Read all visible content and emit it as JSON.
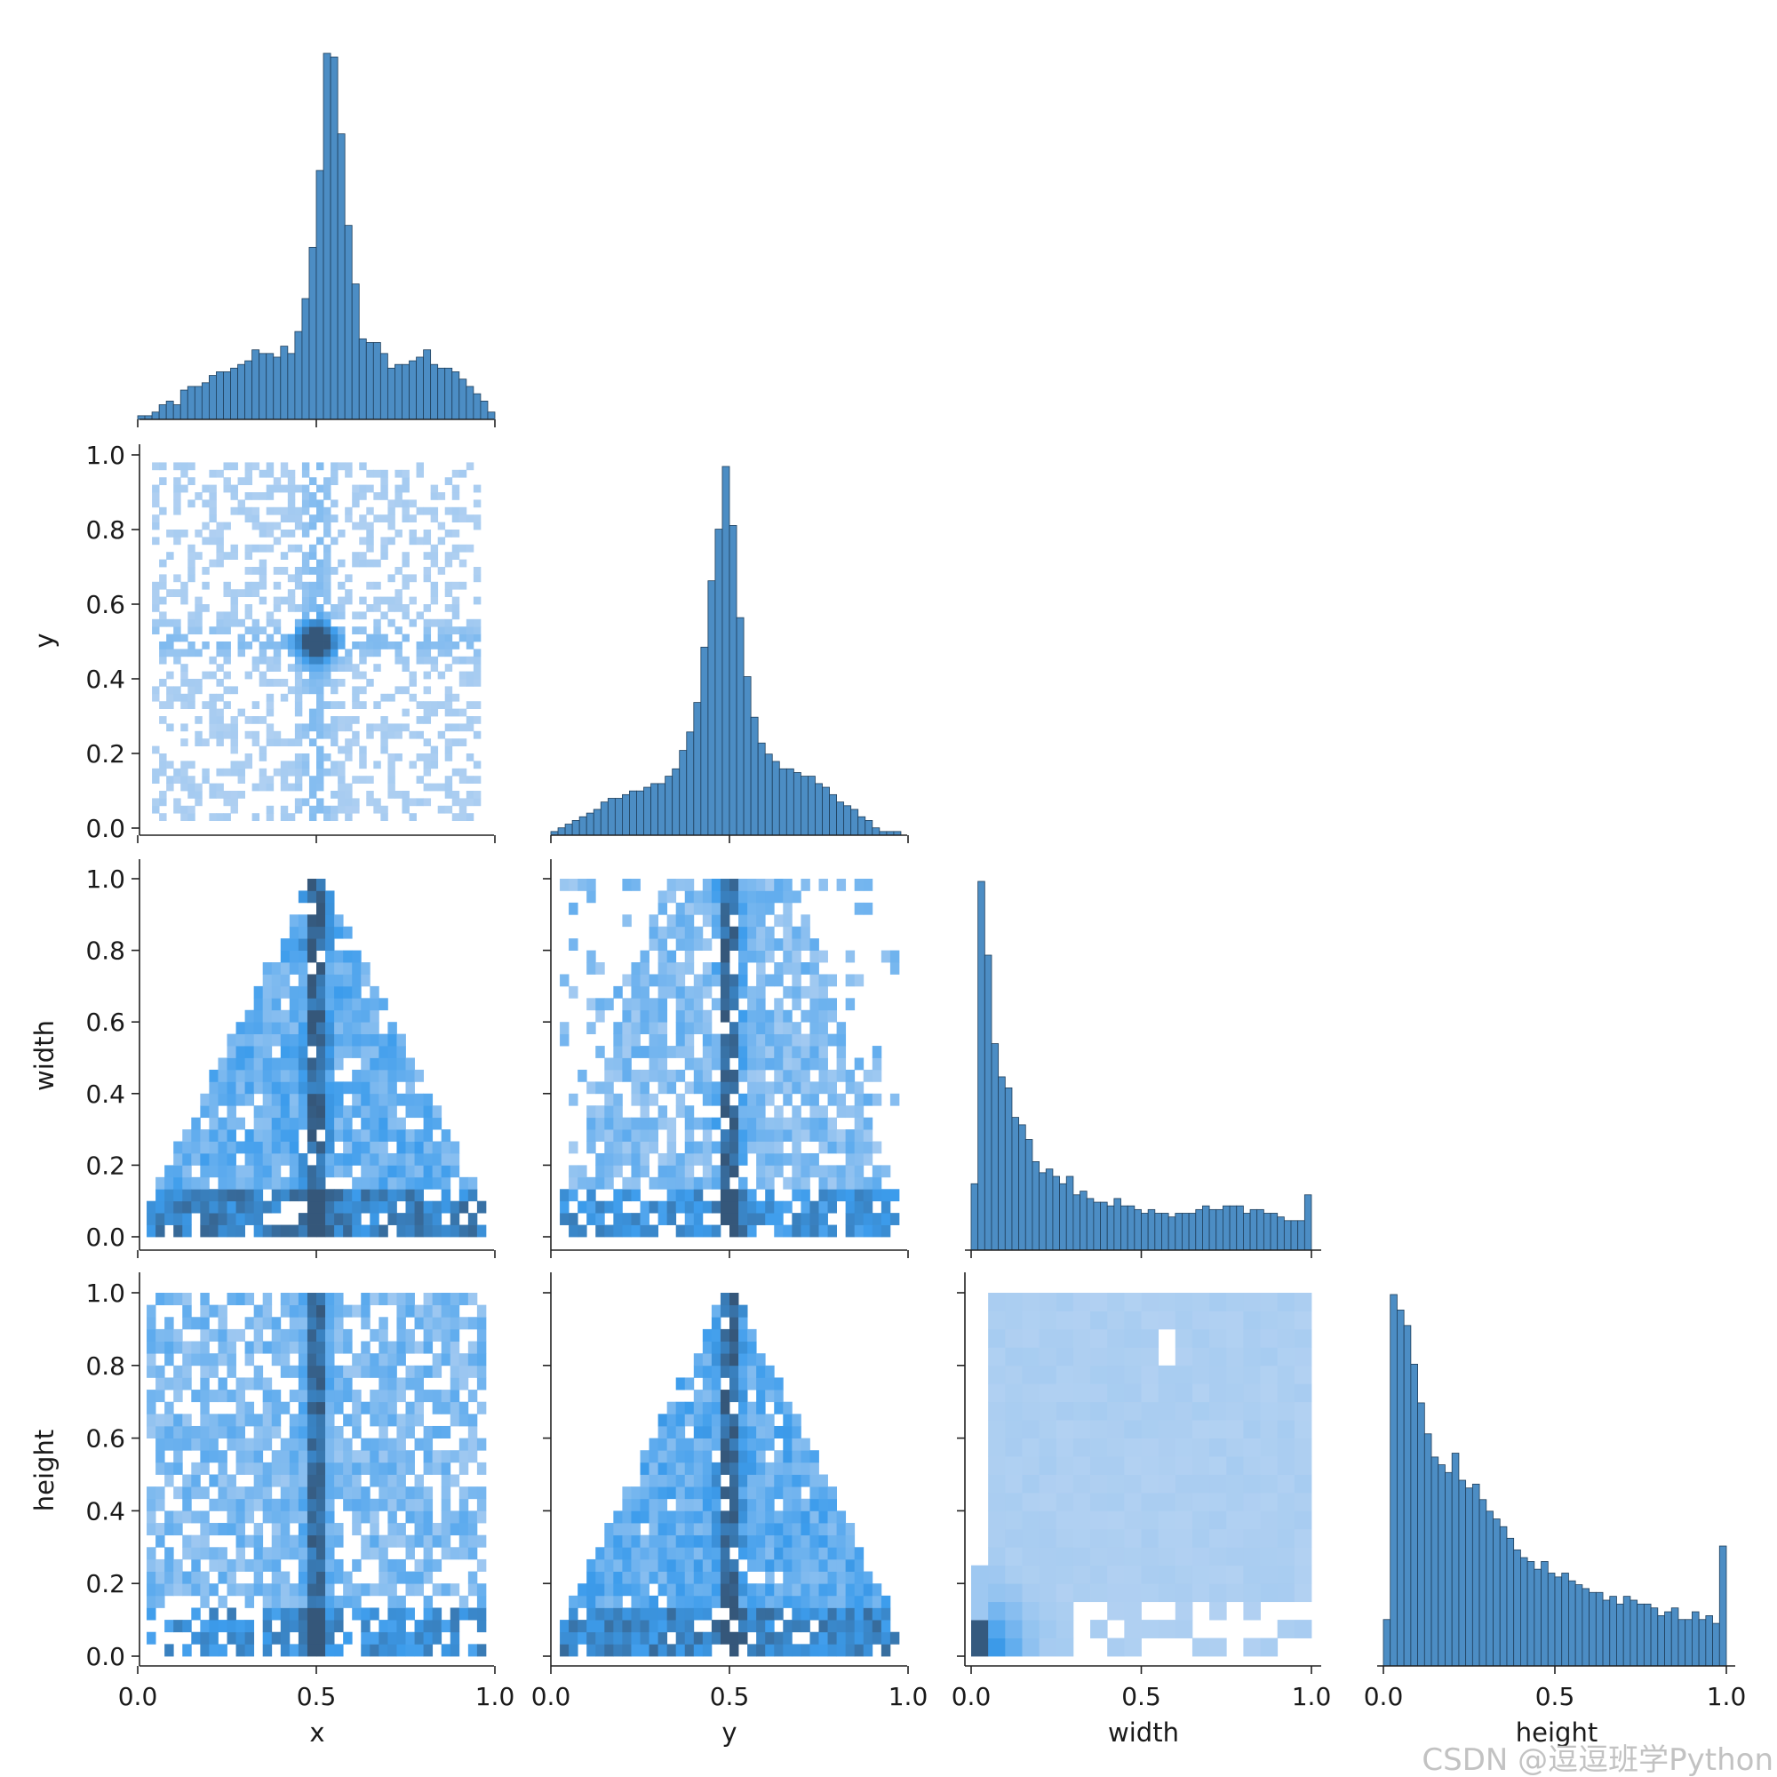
{
  "chart_data": {
    "type": "pairplot",
    "description": "Corner pair plot: histograms on the diagonal, 2D histograms (heatmaps) below.",
    "variables": [
      "x",
      "y",
      "width",
      "height"
    ],
    "axis_range": [
      0,
      1
    ],
    "x_ticks": [
      "0.0",
      "0.5",
      "1.0"
    ],
    "y_ticks": [
      "0.0",
      "0.2",
      "0.4",
      "0.6",
      "0.8",
      "1.0"
    ],
    "colors": {
      "bar_fill": "#4c8dc4",
      "bar_edge": "#1f3f5c",
      "heat_low": "#b9d4f2",
      "heat_mid": "#3c9cec",
      "heat_high": "#35577a"
    },
    "diagonal": [
      {
        "variable": "x",
        "bins": 50,
        "counts": [
          1,
          1,
          2,
          4,
          5,
          4,
          8,
          9,
          9,
          10,
          12,
          13,
          13,
          14,
          15,
          16,
          19,
          18,
          18,
          17,
          20,
          18,
          24,
          33,
          47,
          68,
          100,
          99,
          78,
          53,
          37,
          22,
          21,
          21,
          18,
          14,
          15,
          15,
          16,
          17,
          19,
          15,
          14,
          14,
          13,
          11,
          9,
          7,
          5,
          2
        ]
      },
      {
        "variable": "y",
        "bins": 50,
        "counts": [
          1,
          2,
          3,
          4,
          5,
          6,
          7,
          9,
          10,
          10,
          11,
          12,
          12,
          13,
          14,
          14,
          16,
          18,
          23,
          28,
          36,
          51,
          69,
          83,
          100,
          84,
          59,
          43,
          32,
          25,
          22,
          20,
          18,
          18,
          17,
          16,
          16,
          14,
          13,
          11,
          9,
          8,
          7,
          5,
          4,
          2,
          1,
          1,
          1,
          0
        ]
      },
      {
        "variable": "width",
        "bins": 50,
        "counts": [
          18,
          100,
          80,
          56,
          47,
          44,
          36,
          34,
          30,
          24,
          21,
          22,
          20,
          18,
          20,
          15,
          16,
          14,
          13,
          13,
          12,
          14,
          12,
          12,
          11,
          10,
          11,
          10,
          10,
          9,
          10,
          10,
          10,
          11,
          12,
          11,
          11,
          12,
          12,
          12,
          10,
          11,
          11,
          10,
          10,
          9,
          8,
          8,
          8,
          15
        ]
      },
      {
        "variable": "height",
        "bins": 50,
        "counts": [
          12,
          96,
          92,
          88,
          78,
          68,
          60,
          54,
          52,
          50,
          55,
          48,
          46,
          47,
          43,
          40,
          38,
          36,
          33,
          30,
          28,
          27,
          25,
          27,
          24,
          23,
          24,
          22,
          21,
          20,
          19,
          19,
          17,
          18,
          16,
          18,
          17,
          16,
          16,
          15,
          13,
          14,
          15,
          12,
          12,
          14,
          12,
          13,
          11,
          31
        ]
      }
    ],
    "scatter_panels": [
      {
        "x": "x",
        "y": "y",
        "pattern": "central blob at (0.5, 0.5) with cross along x=0.5 and y=0.5"
      },
      {
        "x": "x",
        "y": "width",
        "pattern": "triangle, dense at x=0.5 and near width=0.05"
      },
      {
        "x": "y",
        "y": "width",
        "pattern": "vertical band at y=0.5, dense near width=0.05"
      },
      {
        "x": "x",
        "y": "height",
        "pattern": "vertical band at x=0.5, dense near height=0.1"
      },
      {
        "x": "y",
        "y": "height",
        "pattern": "triangle, dense at y=0.5"
      },
      {
        "x": "width",
        "y": "height",
        "pattern": "dense near origin, uniform elsewhere"
      }
    ]
  },
  "watermark": "CSDN @逗逗班学Python"
}
